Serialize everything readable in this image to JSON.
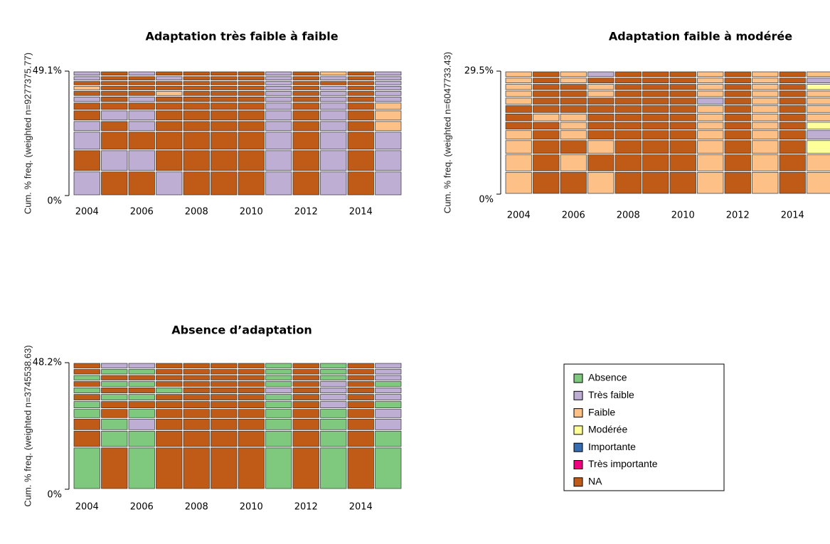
{
  "chart_data": [
    {
      "type": "seqfplot",
      "title": "Adaptation très faible à faible",
      "ylabel": "Cum. % freq. (weighted n=9277375.77)",
      "x": [
        2004,
        2005,
        2006,
        2007,
        2008,
        2009,
        2010,
        2011,
        2012,
        2013,
        2014,
        2015
      ],
      "xticks": [
        2004,
        2006,
        2008,
        2010,
        2012,
        2014
      ],
      "ylim": [
        0,
        49.1
      ],
      "yticks": [
        {
          "value": 0,
          "label": "0%"
        },
        {
          "value": 49.1,
          "label": "49.1%"
        }
      ],
      "sequences": [
        {
          "freq": 9.6,
          "states": [
            "Très faible",
            "NA",
            "NA",
            "Très faible",
            "NA",
            "NA",
            "NA",
            "Très faible",
            "NA",
            "Très faible",
            "NA",
            "Très faible"
          ]
        },
        {
          "freq": 8.4,
          "states": [
            "NA",
            "Très faible",
            "Très faible",
            "NA",
            "NA",
            "NA",
            "NA",
            "Très faible",
            "NA",
            "Très faible",
            "NA",
            "Très faible"
          ]
        },
        {
          "freq": 7.3,
          "states": [
            "Très faible",
            "NA",
            "NA",
            "NA",
            "NA",
            "NA",
            "NA",
            "Très faible",
            "NA",
            "Très faible",
            "NA",
            "Très faible"
          ]
        },
        {
          "freq": 4.2,
          "states": [
            "Très faible",
            "NA",
            "Très faible",
            "NA",
            "NA",
            "NA",
            "NA",
            "Très faible",
            "NA",
            "Très faible",
            "NA",
            "Faible"
          ]
        },
        {
          "freq": 4.2,
          "states": [
            "NA",
            "Très faible",
            "Très faible",
            "NA",
            "NA",
            "NA",
            "NA",
            "Très faible",
            "NA",
            "Très faible",
            "NA",
            "Faible"
          ]
        },
        {
          "freq": 3.1,
          "states": [
            "NA",
            "NA",
            "NA",
            "NA",
            "NA",
            "NA",
            "NA",
            "Très faible",
            "NA",
            "Très faible",
            "NA",
            "Faible"
          ]
        },
        {
          "freq": 2.4,
          "states": [
            "Très faible",
            "NA",
            "Très faible",
            "NA",
            "NA",
            "NA",
            "NA",
            "Très faible",
            "NA",
            "Très faible",
            "NA",
            "Très faible"
          ]
        },
        {
          "freq": 2.2,
          "states": [
            "NA",
            "NA",
            "NA",
            "Faible",
            "NA",
            "NA",
            "NA",
            "Très faible",
            "NA",
            "Très faible",
            "NA",
            "Très faible"
          ]
        },
        {
          "freq": 2.0,
          "states": [
            "Faible",
            "NA",
            "NA",
            "NA",
            "NA",
            "NA",
            "NA",
            "Très faible",
            "NA",
            "Très faible",
            "NA",
            "Très faible"
          ]
        },
        {
          "freq": 1.9,
          "states": [
            "NA",
            "NA",
            "NA",
            "NA",
            "NA",
            "NA",
            "NA",
            "Très faible",
            "NA",
            "NA",
            "NA",
            "Très faible"
          ]
        },
        {
          "freq": 1.9,
          "states": [
            "Très faible",
            "NA",
            "NA",
            "Très faible",
            "NA",
            "NA",
            "NA",
            "Très faible",
            "NA",
            "Très faible",
            "NA",
            "Très faible"
          ]
        },
        {
          "freq": 1.9,
          "states": [
            "Très faible",
            "NA",
            "Très faible",
            "NA",
            "NA",
            "NA",
            "NA",
            "Très faible",
            "NA",
            "Faible",
            "NA",
            "Très faible"
          ]
        }
      ]
    },
    {
      "type": "seqfplot",
      "title": "Adaptation faible à modérée",
      "ylabel": "Cum. % freq. (weighted n=6047733.43)",
      "x": [
        2004,
        2005,
        2006,
        2007,
        2008,
        2009,
        2010,
        2011,
        2012,
        2013,
        2014,
        2015
      ],
      "xticks": [
        2004,
        2006,
        2008,
        2010,
        2012,
        2014
      ],
      "ylim": [
        0,
        29.5
      ],
      "yticks": [
        {
          "value": 0,
          "label": "0%"
        },
        {
          "value": 29.5,
          "label": "29.5%"
        }
      ],
      "sequences": [
        {
          "freq": 5.4,
          "states": [
            "Faible",
            "NA",
            "NA",
            "Faible",
            "NA",
            "NA",
            "NA",
            "Faible",
            "NA",
            "Faible",
            "NA",
            "Faible"
          ]
        },
        {
          "freq": 4.2,
          "states": [
            "Faible",
            "NA",
            "Faible",
            "NA",
            "NA",
            "NA",
            "NA",
            "Faible",
            "NA",
            "Faible",
            "NA",
            "Faible"
          ]
        },
        {
          "freq": 3.4,
          "states": [
            "Faible",
            "NA",
            "NA",
            "Faible",
            "NA",
            "NA",
            "NA",
            "Faible",
            "NA",
            "Faible",
            "NA",
            "Modérée"
          ]
        },
        {
          "freq": 2.4,
          "states": [
            "Faible",
            "NA",
            "Faible",
            "NA",
            "NA",
            "NA",
            "NA",
            "Faible",
            "NA",
            "Faible",
            "NA",
            "Très faible"
          ]
        },
        {
          "freq": 2.0,
          "states": [
            "NA",
            "NA",
            "Faible",
            "NA",
            "NA",
            "NA",
            "NA",
            "Faible",
            "NA",
            "Faible",
            "NA",
            "Modérée"
          ]
        },
        {
          "freq": 2.0,
          "states": [
            "NA",
            "Faible",
            "Faible",
            "NA",
            "NA",
            "NA",
            "NA",
            "Faible",
            "NA",
            "Faible",
            "NA",
            "Faible"
          ]
        },
        {
          "freq": 2.0,
          "states": [
            "NA",
            "NA",
            "NA",
            "NA",
            "NA",
            "NA",
            "NA",
            "Faible",
            "NA",
            "Faible",
            "NA",
            "Faible"
          ]
        },
        {
          "freq": 1.8,
          "states": [
            "Faible",
            "NA",
            "NA",
            "NA",
            "NA",
            "NA",
            "NA",
            "Très faible",
            "NA",
            "Faible",
            "NA",
            "Faible"
          ]
        },
        {
          "freq": 1.7,
          "states": [
            "Faible",
            "NA",
            "NA",
            "Faible",
            "NA",
            "NA",
            "NA",
            "Faible",
            "NA",
            "Faible",
            "NA",
            "Faible"
          ]
        },
        {
          "freq": 1.6,
          "states": [
            "Faible",
            "NA",
            "NA",
            "Faible",
            "NA",
            "NA",
            "NA",
            "Faible",
            "NA",
            "Faible",
            "NA",
            "Modérée"
          ]
        },
        {
          "freq": 1.5,
          "states": [
            "Faible",
            "NA",
            "Faible",
            "NA",
            "NA",
            "NA",
            "NA",
            "Faible",
            "NA",
            "Faible",
            "NA",
            "Très faible"
          ]
        },
        {
          "freq": 1.5,
          "states": [
            "Faible",
            "NA",
            "Faible",
            "Très faible",
            "NA",
            "NA",
            "NA",
            "Faible",
            "NA",
            "Faible",
            "NA",
            "Faible"
          ]
        }
      ]
    },
    {
      "type": "seqfplot",
      "title": "Absence d’adaptation",
      "ylabel": "Cum. % freq. (weighted n=3745538.63)",
      "x": [
        2004,
        2005,
        2006,
        2007,
        2008,
        2009,
        2010,
        2011,
        2012,
        2013,
        2014,
        2015
      ],
      "xticks": [
        2004,
        2006,
        2008,
        2010,
        2012,
        2014
      ],
      "ylim": [
        0,
        48.2
      ],
      "yticks": [
        {
          "value": 0,
          "label": "0%"
        },
        {
          "value": 48.2,
          "label": "48.2%"
        }
      ],
      "sequences": [
        {
          "freq": 16.0,
          "states": [
            "Absence",
            "NA",
            "Absence",
            "NA",
            "NA",
            "NA",
            "NA",
            "Absence",
            "NA",
            "Absence",
            "NA",
            "Absence"
          ]
        },
        {
          "freq": 6.4,
          "states": [
            "NA",
            "Absence",
            "Absence",
            "NA",
            "NA",
            "NA",
            "NA",
            "Absence",
            "NA",
            "Absence",
            "NA",
            "Absence"
          ]
        },
        {
          "freq": 4.6,
          "states": [
            "NA",
            "Absence",
            "Très faible",
            "NA",
            "NA",
            "NA",
            "NA",
            "Absence",
            "NA",
            "Absence",
            "NA",
            "Très faible"
          ]
        },
        {
          "freq": 3.7,
          "states": [
            "Absence",
            "NA",
            "Absence",
            "NA",
            "NA",
            "NA",
            "NA",
            "Absence",
            "NA",
            "Absence",
            "NA",
            "Très faible"
          ]
        },
        {
          "freq": 3.0,
          "states": [
            "Absence",
            "NA",
            "NA",
            "NA",
            "NA",
            "NA",
            "NA",
            "Absence",
            "NA",
            "Très faible",
            "NA",
            "Absence"
          ]
        },
        {
          "freq": 2.7,
          "states": [
            "NA",
            "Absence",
            "Absence",
            "NA",
            "NA",
            "NA",
            "NA",
            "Absence",
            "NA",
            "Très faible",
            "NA",
            "Très faible"
          ]
        },
        {
          "freq": 2.5,
          "states": [
            "Absence",
            "NA",
            "NA",
            "Absence",
            "NA",
            "NA",
            "NA",
            "Très faible",
            "NA",
            "Très faible",
            "NA",
            "Très faible"
          ]
        },
        {
          "freq": 2.4,
          "states": [
            "NA",
            "Absence",
            "Absence",
            "NA",
            "NA",
            "NA",
            "NA",
            "Absence",
            "NA",
            "Très faible",
            "NA",
            "Absence"
          ]
        },
        {
          "freq": 2.3,
          "states": [
            "Absence",
            "NA",
            "NA",
            "NA",
            "NA",
            "NA",
            "NA",
            "Absence",
            "NA",
            "Absence",
            "NA",
            "Très faible"
          ]
        },
        {
          "freq": 2.3,
          "states": [
            "NA",
            "Absence",
            "Absence",
            "NA",
            "NA",
            "NA",
            "NA",
            "Absence",
            "NA",
            "Absence",
            "NA",
            "Très faible"
          ]
        },
        {
          "freq": 2.3,
          "states": [
            "NA",
            "Très faible",
            "Très faible",
            "NA",
            "NA",
            "NA",
            "NA",
            "Absence",
            "NA",
            "Absence",
            "NA",
            "Très faible"
          ]
        }
      ]
    }
  ],
  "legend": {
    "states": [
      {
        "name": "Absence",
        "color": "#7fc97f"
      },
      {
        "name": "Très faible",
        "color": "#beaed4"
      },
      {
        "name": "Faible",
        "color": "#fdc086"
      },
      {
        "name": "Modérée",
        "color": "#ffff99"
      },
      {
        "name": "Importante",
        "color": "#386cb0"
      },
      {
        "name": "Très importante",
        "color": "#f0027f"
      },
      {
        "name": "NA",
        "color": "#bf5b17"
      }
    ]
  }
}
